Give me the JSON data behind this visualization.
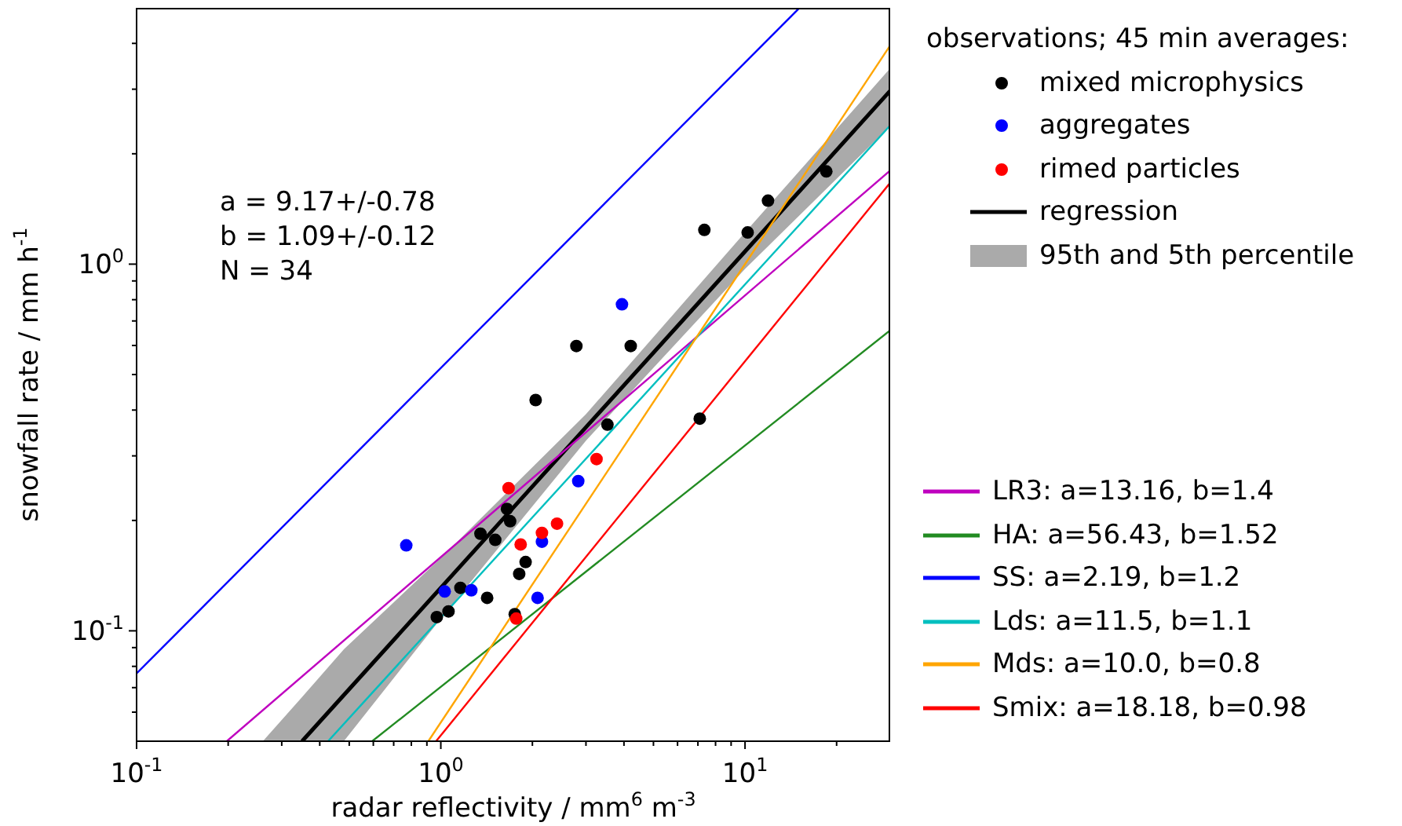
{
  "chart_data": {
    "type": "scatter",
    "log": "xy",
    "xlabel": "radar reflectivity / mm$^{6}$ m$^{-3}$",
    "ylabel": "snowfall rate / mm h$^{-1}$",
    "legend_title": "observations; 45 min averages:",
    "legend": "right",
    "grid": false,
    "annotations": [
      "a = 9.17+/-0.78",
      "b = 1.09+/-0.12",
      "N = 34",
      "95th and 5th percentile"
    ],
    "xlim": [
      0.1,
      30
    ],
    "ylim": [
      0.05,
      5
    ],
    "xticks": [
      {
        "value": 0.1,
        "label": "10$^{-1}$"
      },
      {
        "value": 0.2,
        "label": null
      },
      {
        "value": 0.3,
        "label": null
      },
      {
        "value": 0.4,
        "label": null
      },
      {
        "value": 0.5,
        "label": null
      },
      {
        "value": 0.6,
        "label": null
      },
      {
        "value": 0.7,
        "label": null
      },
      {
        "value": 0.8,
        "label": null
      },
      {
        "value": 0.9,
        "label": null
      },
      {
        "value": 1,
        "label": "10$^{0}$"
      },
      {
        "value": 2,
        "label": null
      },
      {
        "value": 3,
        "label": null
      },
      {
        "value": 4,
        "label": null
      },
      {
        "value": 5,
        "label": null
      },
      {
        "value": 6,
        "label": null
      },
      {
        "value": 7,
        "label": null
      },
      {
        "value": 8,
        "label": null
      },
      {
        "value": 9,
        "label": null
      },
      {
        "value": 10,
        "label": "10$^{1}$"
      },
      {
        "value": 20,
        "label": null
      }
    ],
    "yticks": [
      {
        "value": 0.06,
        "label": null
      },
      {
        "value": 0.07,
        "label": null
      },
      {
        "value": 0.08,
        "label": null
      },
      {
        "value": 0.09,
        "label": null
      },
      {
        "value": 0.1,
        "label": "10$^{-1}$"
      },
      {
        "value": 0.2,
        "label": null
      },
      {
        "value": 0.3,
        "label": null
      },
      {
        "value": 0.4,
        "label": null
      },
      {
        "value": 0.5,
        "label": null
      },
      {
        "value": 0.6,
        "label": null
      },
      {
        "value": 0.7,
        "label": null
      },
      {
        "value": 0.8,
        "label": null
      },
      {
        "value": 0.9,
        "label": null
      },
      {
        "value": 1,
        "label": "10$^{0}$"
      },
      {
        "value": 2,
        "label": null
      },
      {
        "value": 3,
        "label": null
      },
      {
        "value": 4,
        "label": null
      }
    ],
    "series": [
      {
        "name": "mixed microphysics",
        "marker": "circle",
        "color": "#000000",
        "x": [
          7.35,
          10.2,
          11.9,
          18.5,
          2.79,
          4.21,
          2.05,
          3.53,
          7.1,
          1.65,
          1.69,
          1.35,
          1.51,
          1.16,
          0.97,
          1.06,
          1.42,
          1.81,
          1.9,
          1.75
        ],
        "values": [
          1.24,
          1.22,
          1.49,
          1.79,
          0.598,
          0.598,
          0.426,
          0.365,
          0.379,
          0.215,
          0.199,
          0.184,
          0.177,
          0.131,
          0.109,
          0.113,
          0.123,
          0.143,
          0.154,
          0.111
        ]
      },
      {
        "name": "aggregates",
        "marker": "circle",
        "color": "#0000ff",
        "x": [
          0.77,
          1.03,
          1.26,
          2.08,
          2.15,
          2.83,
          3.94
        ],
        "values": [
          0.171,
          0.128,
          0.129,
          0.123,
          0.175,
          0.256,
          0.777
        ]
      },
      {
        "name": "rimed particles",
        "marker": "circle",
        "color": "#ff0000",
        "x": [
          1.67,
          1.83,
          2.15,
          2.41,
          3.25,
          1.77
        ],
        "values": [
          0.245,
          0.172,
          0.185,
          0.196,
          0.294,
          0.108
        ]
      },
      {
        "name": "regression",
        "type": "line",
        "color": "#000000",
        "x": [
          0.26,
          0.35,
          0.48,
          1,
          3,
          10,
          30
        ],
        "values": [
          null,
          0.05,
          0.0668,
          0.131,
          0.359,
          1.083,
          2.97
        ],
        "lower": [
          0.05,
          0.05,
          0.05,
          0.108,
          0.33,
          0.97,
          2.38
        ],
        "upper": [
          0.05,
          0.066,
          0.089,
          0.158,
          0.39,
          1.22,
          3.42
        ]
      },
      {
        "name": "LR3: a=13.16, b=1.4",
        "type": "line",
        "color": "#bf00bf",
        "x": [
          0.198,
          30
        ],
        "values": [
          0.05,
          1.8
        ]
      },
      {
        "name": "HA: a=56.43, b=1.52",
        "type": "line",
        "color": "#228b22",
        "x": [
          0.595,
          30
        ],
        "values": [
          0.05,
          0.66
        ]
      },
      {
        "name": "SS: a=2.19, b=1.2",
        "type": "line",
        "color": "#0000ff",
        "x": [
          0.1,
          15.1
        ],
        "values": [
          0.0765,
          5
        ]
      },
      {
        "name": "Lds: a=11.5, b=1.1",
        "type": "line",
        "color": "#00bfbf",
        "x": [
          0.426,
          30
        ],
        "values": [
          0.05,
          2.39
        ]
      },
      {
        "name": "Mds: a=10.0, b=0.8",
        "type": "line",
        "color": "#ffa500",
        "x": [
          0.91,
          30
        ],
        "values": [
          0.05,
          3.95
        ]
      },
      {
        "name": "Smix: a=18.18, b=0.98",
        "type": "line",
        "color": "#ff0000",
        "x": [
          0.965,
          30
        ],
        "values": [
          0.05,
          1.667
        ]
      }
    ]
  }
}
